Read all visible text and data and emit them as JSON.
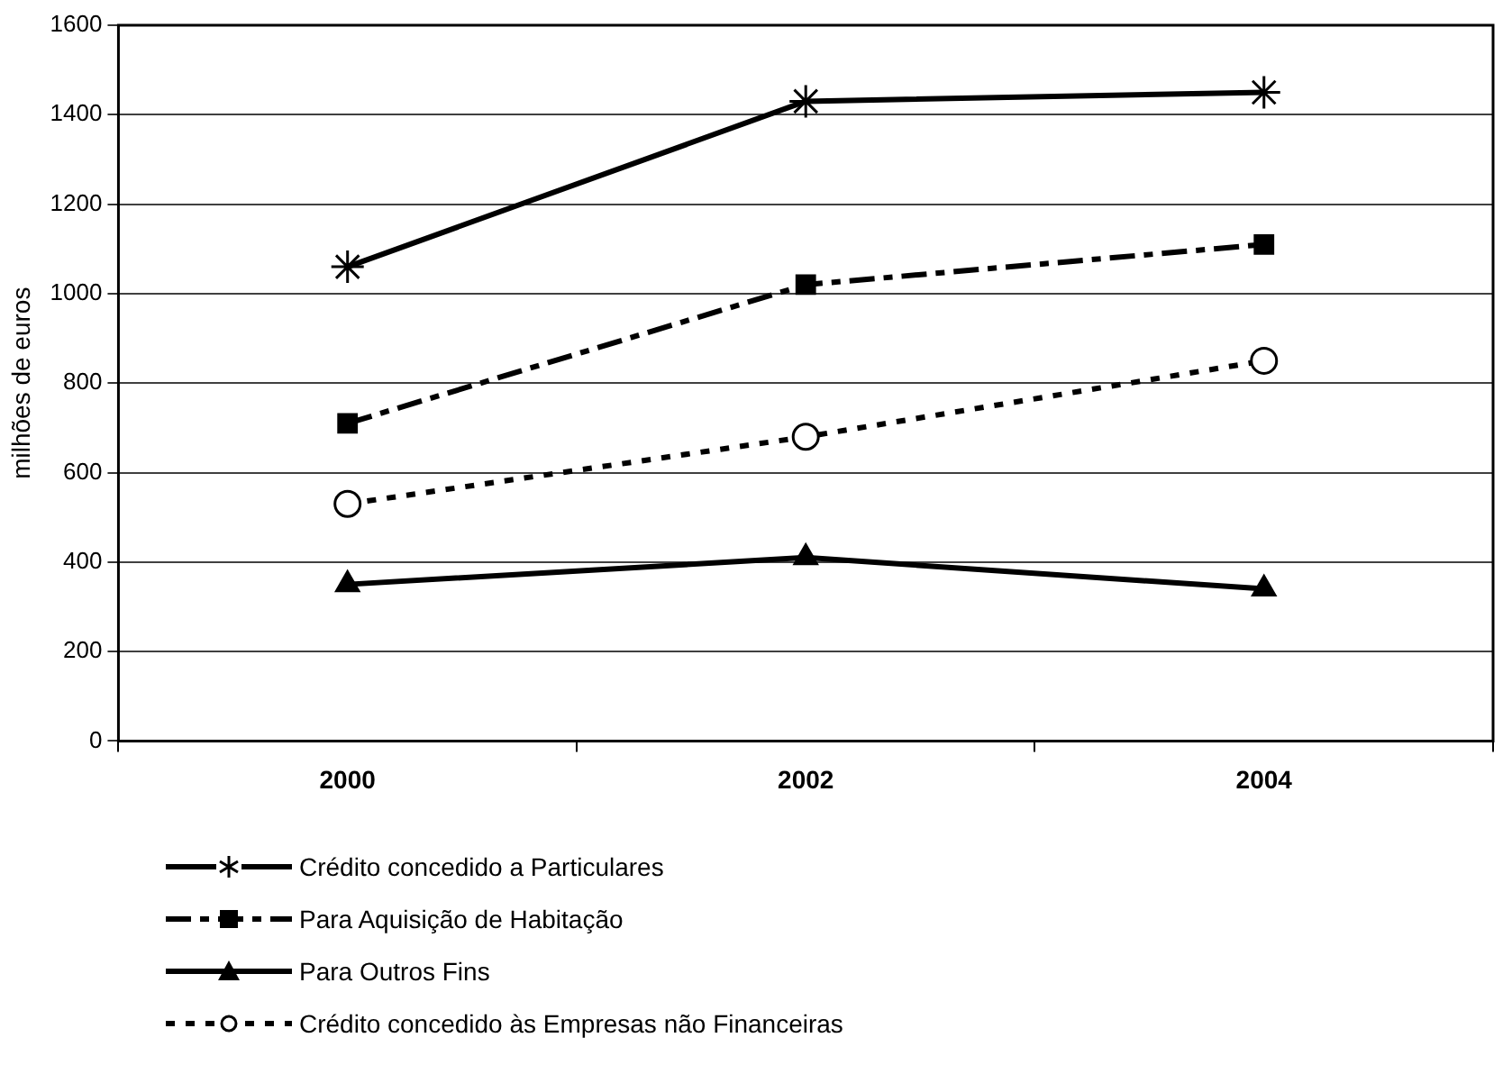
{
  "chart_data": {
    "type": "line",
    "ylabel": "milhões de euros",
    "categories": [
      "2000",
      "2002",
      "2004"
    ],
    "series": [
      {
        "name": "Crédito concedido a Particulares",
        "color": "#000000",
        "marker": "cross",
        "line_style": "solid",
        "values": [
          1060,
          1430,
          1450
        ]
      },
      {
        "name": "Para Aquisição de Habitação",
        "color": "#000000",
        "marker": "square",
        "line_style": "dashed",
        "values": [
          710,
          1020,
          1110
        ]
      },
      {
        "name": "Para Outros Fins",
        "color": "#000000",
        "marker": "triangle",
        "line_style": "solid",
        "values": [
          350,
          410,
          340
        ]
      },
      {
        "name": "Crédito concedido às Empresas não Financeiras",
        "color": "#000000",
        "marker": "circle",
        "line_style": "dotted",
        "values": [
          530,
          680,
          850
        ]
      }
    ],
    "ylim": [
      0,
      1600
    ],
    "yticks": [
      0,
      200,
      400,
      600,
      800,
      1000,
      1200,
      1400,
      1600
    ],
    "grid": "y",
    "legend": "bottom"
  }
}
